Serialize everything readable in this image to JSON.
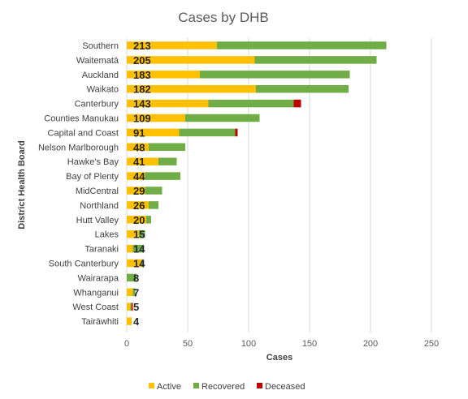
{
  "chart_data": {
    "type": "bar",
    "orientation": "horizontal",
    "stacked": true,
    "title": "Cases by DHB",
    "xlabel": "Cases",
    "ylabel": "District Health Board",
    "xlim": [
      0,
      250
    ],
    "xticks": [
      "0",
      "50",
      "100",
      "150",
      "200",
      "250"
    ],
    "grid": true,
    "legend_position": "bottom",
    "categories": [
      "Southern",
      "Waitematā",
      "Auckland",
      "Waikato",
      "Canterbury",
      "Counties Manukau",
      "Capital and Coast",
      "Nelson Marlborough",
      "Hawke's Bay",
      "Bay of Plenty",
      "MidCentral",
      "Northland",
      "Hutt Valley",
      "Lakes",
      "Taranaki",
      "South Canterbury",
      "Wairarapa",
      "Whanganui",
      "West Coast",
      "Tairāwhiti"
    ],
    "totals": [
      "213",
      "205",
      "183",
      "182",
      "143",
      "109",
      "91",
      "48",
      "41",
      "44",
      "29",
      "26",
      "20",
      "15",
      "14",
      "14",
      "8",
      "7",
      "5",
      "4"
    ],
    "series": [
      {
        "name": "Active",
        "color": "#ffc000",
        "values": [
          74,
          105,
          60,
          106,
          67,
          48,
          43,
          18,
          26,
          15,
          15,
          18,
          16,
          10,
          5,
          12,
          0,
          5,
          3,
          4
        ]
      },
      {
        "name": "Recovered",
        "color": "#70ad47",
        "values": [
          139,
          100,
          123,
          76,
          70,
          61,
          46,
          30,
          15,
          29,
          14,
          8,
          4,
          5,
          9,
          2,
          8,
          2,
          1,
          0
        ]
      },
      {
        "name": "Deceased",
        "color": "#c00000",
        "values": [
          0,
          0,
          0,
          0,
          6,
          0,
          2,
          0,
          0,
          0,
          0,
          0,
          0,
          0,
          0,
          0,
          0,
          0,
          1,
          0
        ]
      }
    ]
  }
}
